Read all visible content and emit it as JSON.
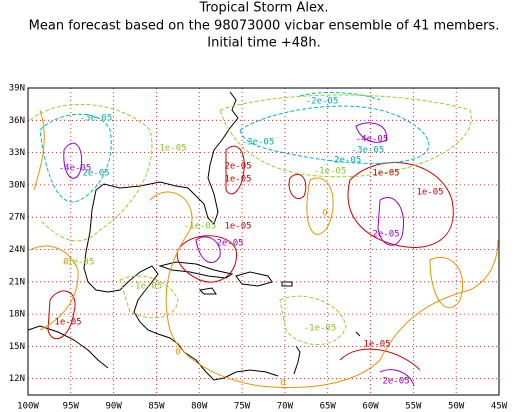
{
  "header": {
    "title_lines": [
      "Tropical Storm Alex.",
      "Mean forecast based on the 98073000 vicbar ensemble of 41 members.",
      "Initial time +48h."
    ]
  },
  "map": {
    "lon_labels": [
      "100W",
      "95W",
      "90W",
      "85W",
      "80W",
      "75W",
      "70W",
      "65W",
      "60W",
      "55W",
      "50W",
      "45W"
    ],
    "lat_labels": [
      "39N",
      "36N",
      "33N",
      "30N",
      "27N",
      "24N",
      "21N",
      "18N",
      "15N",
      "12N"
    ],
    "contour_labels": [
      "-3e-05",
      "-2e-05",
      "-3e-05",
      "-4e-05",
      "-3e-05",
      "-2e-05",
      "-1e-05",
      "1e-05",
      "2e-05",
      "1e-05",
      "-4e-05",
      "2e-05",
      "1e-05",
      "1e-05",
      "-1e-05",
      "1e-05",
      "2e-05",
      "2e-05",
      "-1e-05",
      "-1e-05",
      "1e-05",
      "-1e-05",
      "1e-05",
      "2e-05",
      "0",
      "0",
      "0",
      "0"
    ]
  }
}
